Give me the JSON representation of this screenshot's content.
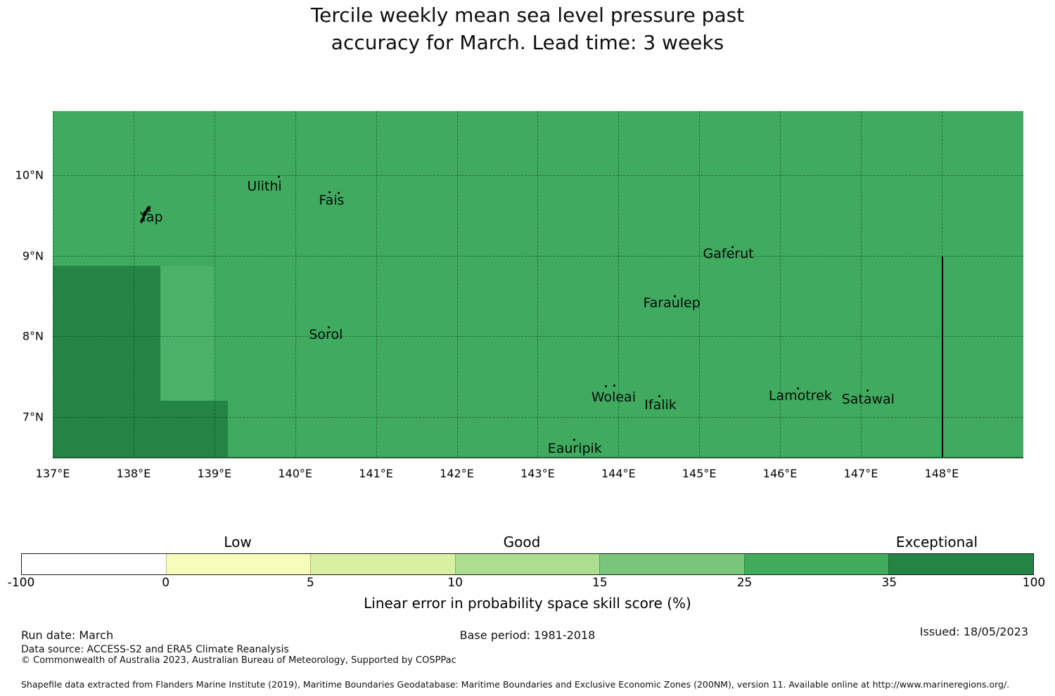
{
  "title": {
    "line1": "Tercile weekly mean sea level pressure past",
    "line2": "accuracy for March. Lead time: 3 weeks"
  },
  "map": {
    "islands": [
      {
        "name": "Ulithi",
        "lon": 139.62,
        "lat": 9.86,
        "dots": [
          [
            19,
            -15
          ]
        ]
      },
      {
        "name": "Fais",
        "lon": 140.45,
        "lat": 9.69,
        "dots": [
          [
            -4,
            -13
          ],
          [
            9,
            -12
          ]
        ]
      },
      {
        "name": "Yap",
        "lon": 138.22,
        "lat": 9.48,
        "dots": [],
        "glyph": "island"
      },
      {
        "name": "Gaferut",
        "lon": 145.36,
        "lat": 9.02,
        "dots": [
          [
            4,
            -11
          ]
        ]
      },
      {
        "name": "Faraulep",
        "lon": 144.66,
        "lat": 8.41,
        "dots": [
          [
            3,
            -11
          ]
        ]
      },
      {
        "name": "Sorol",
        "lon": 140.38,
        "lat": 8.02,
        "dots": [
          [
            3,
            -12
          ]
        ]
      },
      {
        "name": "Woleai",
        "lon": 143.94,
        "lat": 7.24,
        "dots": [
          [
            -12,
            -17
          ],
          [
            0,
            -18
          ]
        ]
      },
      {
        "name": "Ifalik",
        "lon": 144.52,
        "lat": 7.15,
        "dots": [
          [
            -3,
            -14
          ]
        ]
      },
      {
        "name": "Lamotrek",
        "lon": 146.25,
        "lat": 7.26,
        "dots": [
          [
            -5,
            -12
          ]
        ]
      },
      {
        "name": "Satawal",
        "lon": 147.09,
        "lat": 7.22,
        "dots": [
          [
            -2,
            -14
          ]
        ]
      },
      {
        "name": "Eauripik",
        "lon": 143.46,
        "lat": 6.61,
        "dots": [
          [
            -2,
            -14
          ]
        ]
      }
    ],
    "x_ticks": [
      {
        "label": "137°E",
        "lon": 137
      },
      {
        "label": "138°E",
        "lon": 138
      },
      {
        "label": "139°E",
        "lon": 139
      },
      {
        "label": "140°E",
        "lon": 140
      },
      {
        "label": "141°E",
        "lon": 141
      },
      {
        "label": "142°E",
        "lon": 142
      },
      {
        "label": "143°E",
        "lon": 143
      },
      {
        "label": "144°E",
        "lon": 144
      },
      {
        "label": "145°E",
        "lon": 145
      },
      {
        "label": "146°E",
        "lon": 146
      },
      {
        "label": "147°E",
        "lon": 147
      },
      {
        "label": "148°E",
        "lon": 148
      }
    ],
    "y_ticks": [
      {
        "label": "10°N",
        "lat": 10
      },
      {
        "label": "9°N",
        "lat": 9
      },
      {
        "label": "8°N",
        "lat": 8
      },
      {
        "label": "7°N",
        "lat": 7
      }
    ]
  },
  "colorbar": {
    "bins": [
      {
        "from": -100,
        "to": 0,
        "color": "#ffffff"
      },
      {
        "from": 0,
        "to": 5,
        "color": "#f7fcb9"
      },
      {
        "from": 5,
        "to": 10,
        "color": "#d9f0a3"
      },
      {
        "from": 10,
        "to": 15,
        "color": "#addd8e"
      },
      {
        "from": 15,
        "to": 25,
        "color": "#78c679"
      },
      {
        "from": 25,
        "to": 35,
        "color": "#41ab5d"
      },
      {
        "from": 35,
        "to": 100,
        "color": "#238443"
      }
    ],
    "tick_labels": [
      "-100",
      "0",
      "5",
      "10",
      "15",
      "25",
      "35",
      "100"
    ],
    "category_labels": [
      "Low",
      "Good",
      "Exceptional"
    ],
    "axis_label": "Linear error in probability space skill score (%)"
  },
  "footer": {
    "run_date": "Run date: March",
    "base_period": "Base period: 1981-2018",
    "issued": "Issued: 18/05/2023",
    "data_source": "Data source: ACCESS-S2 and ERA5 Climate Reanalysis",
    "copyright": "© Commonwealth of Australia 2023, Australian Bureau of Meteorology, Supported by COSPPac",
    "shapefile": "Shapefile data extracted from Flanders Marine Institute (2019), Maritime Boundaries Geodatabase: Maritime Boundaries and Exclusive Economic Zones (200NM), version 11. Available online at http://www.marineregions.org/."
  },
  "chart_data": {
    "type": "heatmap",
    "title": "Tercile weekly mean sea level pressure past accuracy for March. Lead time: 3 weeks",
    "x_axis": {
      "tick_labels": [
        "137°E",
        "138°E",
        "139°E",
        "140°E",
        "141°E",
        "142°E",
        "143°E",
        "144°E",
        "145°E",
        "146°E",
        "147°E",
        "148°E"
      ],
      "range_deg": [
        137,
        149.0
      ]
    },
    "y_axis": {
      "tick_labels": [
        "7°N",
        "8°N",
        "9°N",
        "10°N"
      ],
      "range_deg": [
        6.5,
        10.8
      ]
    },
    "grid": "dashed, every 1 degree",
    "skill_regions": [
      {
        "area": "entire map except southwest",
        "skill_score_bin": "25-35",
        "color": "#41ab5d"
      },
      {
        "area": "block 137°E-138.33°E south of 8.9°N down to map bottom, extending east to 139.17°E south of 7.2°N",
        "skill_score_bin": "35-100",
        "color": "#238443"
      },
      {
        "area": "strip 138.33°E-139°E between 8.9°N and 7.2°N",
        "skill_score_bin": "25-35 (lighter shade)",
        "color": "#4bb169"
      },
      {
        "boundary_line": "vertical black line at 148°E from 9°N to map bottom"
      }
    ],
    "colorbar": {
      "tick_values": [
        -100,
        0,
        5,
        10,
        15,
        25,
        35,
        100
      ],
      "bin_colors": [
        "#ffffff",
        "#f7fcb9",
        "#d9f0a3",
        "#addd8e",
        "#78c679",
        "#41ab5d",
        "#238443"
      ],
      "category_labels": [
        "Low",
        "Good",
        "Exceptional"
      ],
      "axis_label": "Linear error in probability space skill score (%)",
      "legend_position": "bottom"
    },
    "labeled_points": [
      {
        "name": "Ulithi",
        "lon": 139.62,
        "lat": 9.86
      },
      {
        "name": "Fais",
        "lon": 140.45,
        "lat": 9.69
      },
      {
        "name": "Yap",
        "lon": 138.22,
        "lat": 9.48
      },
      {
        "name": "Gaferut",
        "lon": 145.36,
        "lat": 9.02
      },
      {
        "name": "Faraulep",
        "lon": 144.66,
        "lat": 8.41
      },
      {
        "name": "Sorol",
        "lon": 140.38,
        "lat": 8.02
      },
      {
        "name": "Woleai",
        "lon": 143.94,
        "lat": 7.24
      },
      {
        "name": "Ifalik",
        "lon": 144.52,
        "lat": 7.15
      },
      {
        "name": "Lamotrek",
        "lon": 146.25,
        "lat": 7.26
      },
      {
        "name": "Satawal",
        "lon": 147.09,
        "lat": 7.22
      },
      {
        "name": "Eauripik",
        "lon": 143.46,
        "lat": 6.61
      }
    ]
  }
}
